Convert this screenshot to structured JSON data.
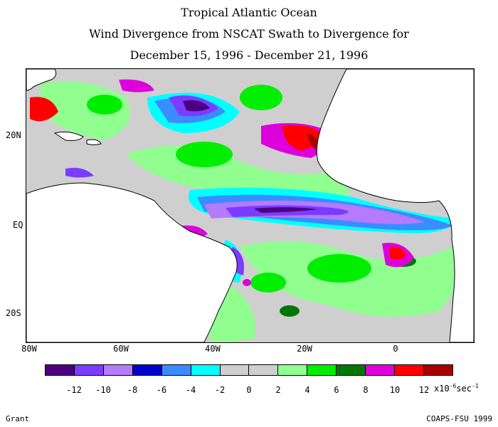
{
  "title": {
    "line1": "Tropical Atlantic Ocean",
    "line2": "Wind Divergence from NSCAT Swath to Divergence for",
    "line3": "December 15, 1996 - December 21, 1996"
  },
  "axes": {
    "lat_labels": [
      "20N",
      "EQ",
      "20S"
    ],
    "lon_labels": [
      "80W",
      "60W",
      "40W",
      "20W",
      "0"
    ]
  },
  "colorbar": {
    "colors": [
      "#4b0082",
      "#7b3cff",
      "#b57bff",
      "#0000cc",
      "#3a8cff",
      "#00ffff",
      "#cfcfcf",
      "#cfcfcf",
      "#90ff90",
      "#00ee00",
      "#007700",
      "#dd00dd",
      "#ff0000",
      "#aa0000"
    ],
    "tick_labels": [
      "-12",
      "-10",
      "-8",
      "-6",
      "-4",
      "-2",
      "0",
      "2",
      "4",
      "6",
      "8",
      "10",
      "12"
    ],
    "units_prefix": "x10",
    "units_exp1": "-6",
    "units_mid": "sec",
    "units_exp2": "-1"
  },
  "credits": {
    "left": "Grant",
    "right": "COAPS-FSU 1999"
  },
  "colors": {
    "land": "#ffffff",
    "ocean_neutral": "#cfcfcf",
    "coast": "#000000"
  }
}
